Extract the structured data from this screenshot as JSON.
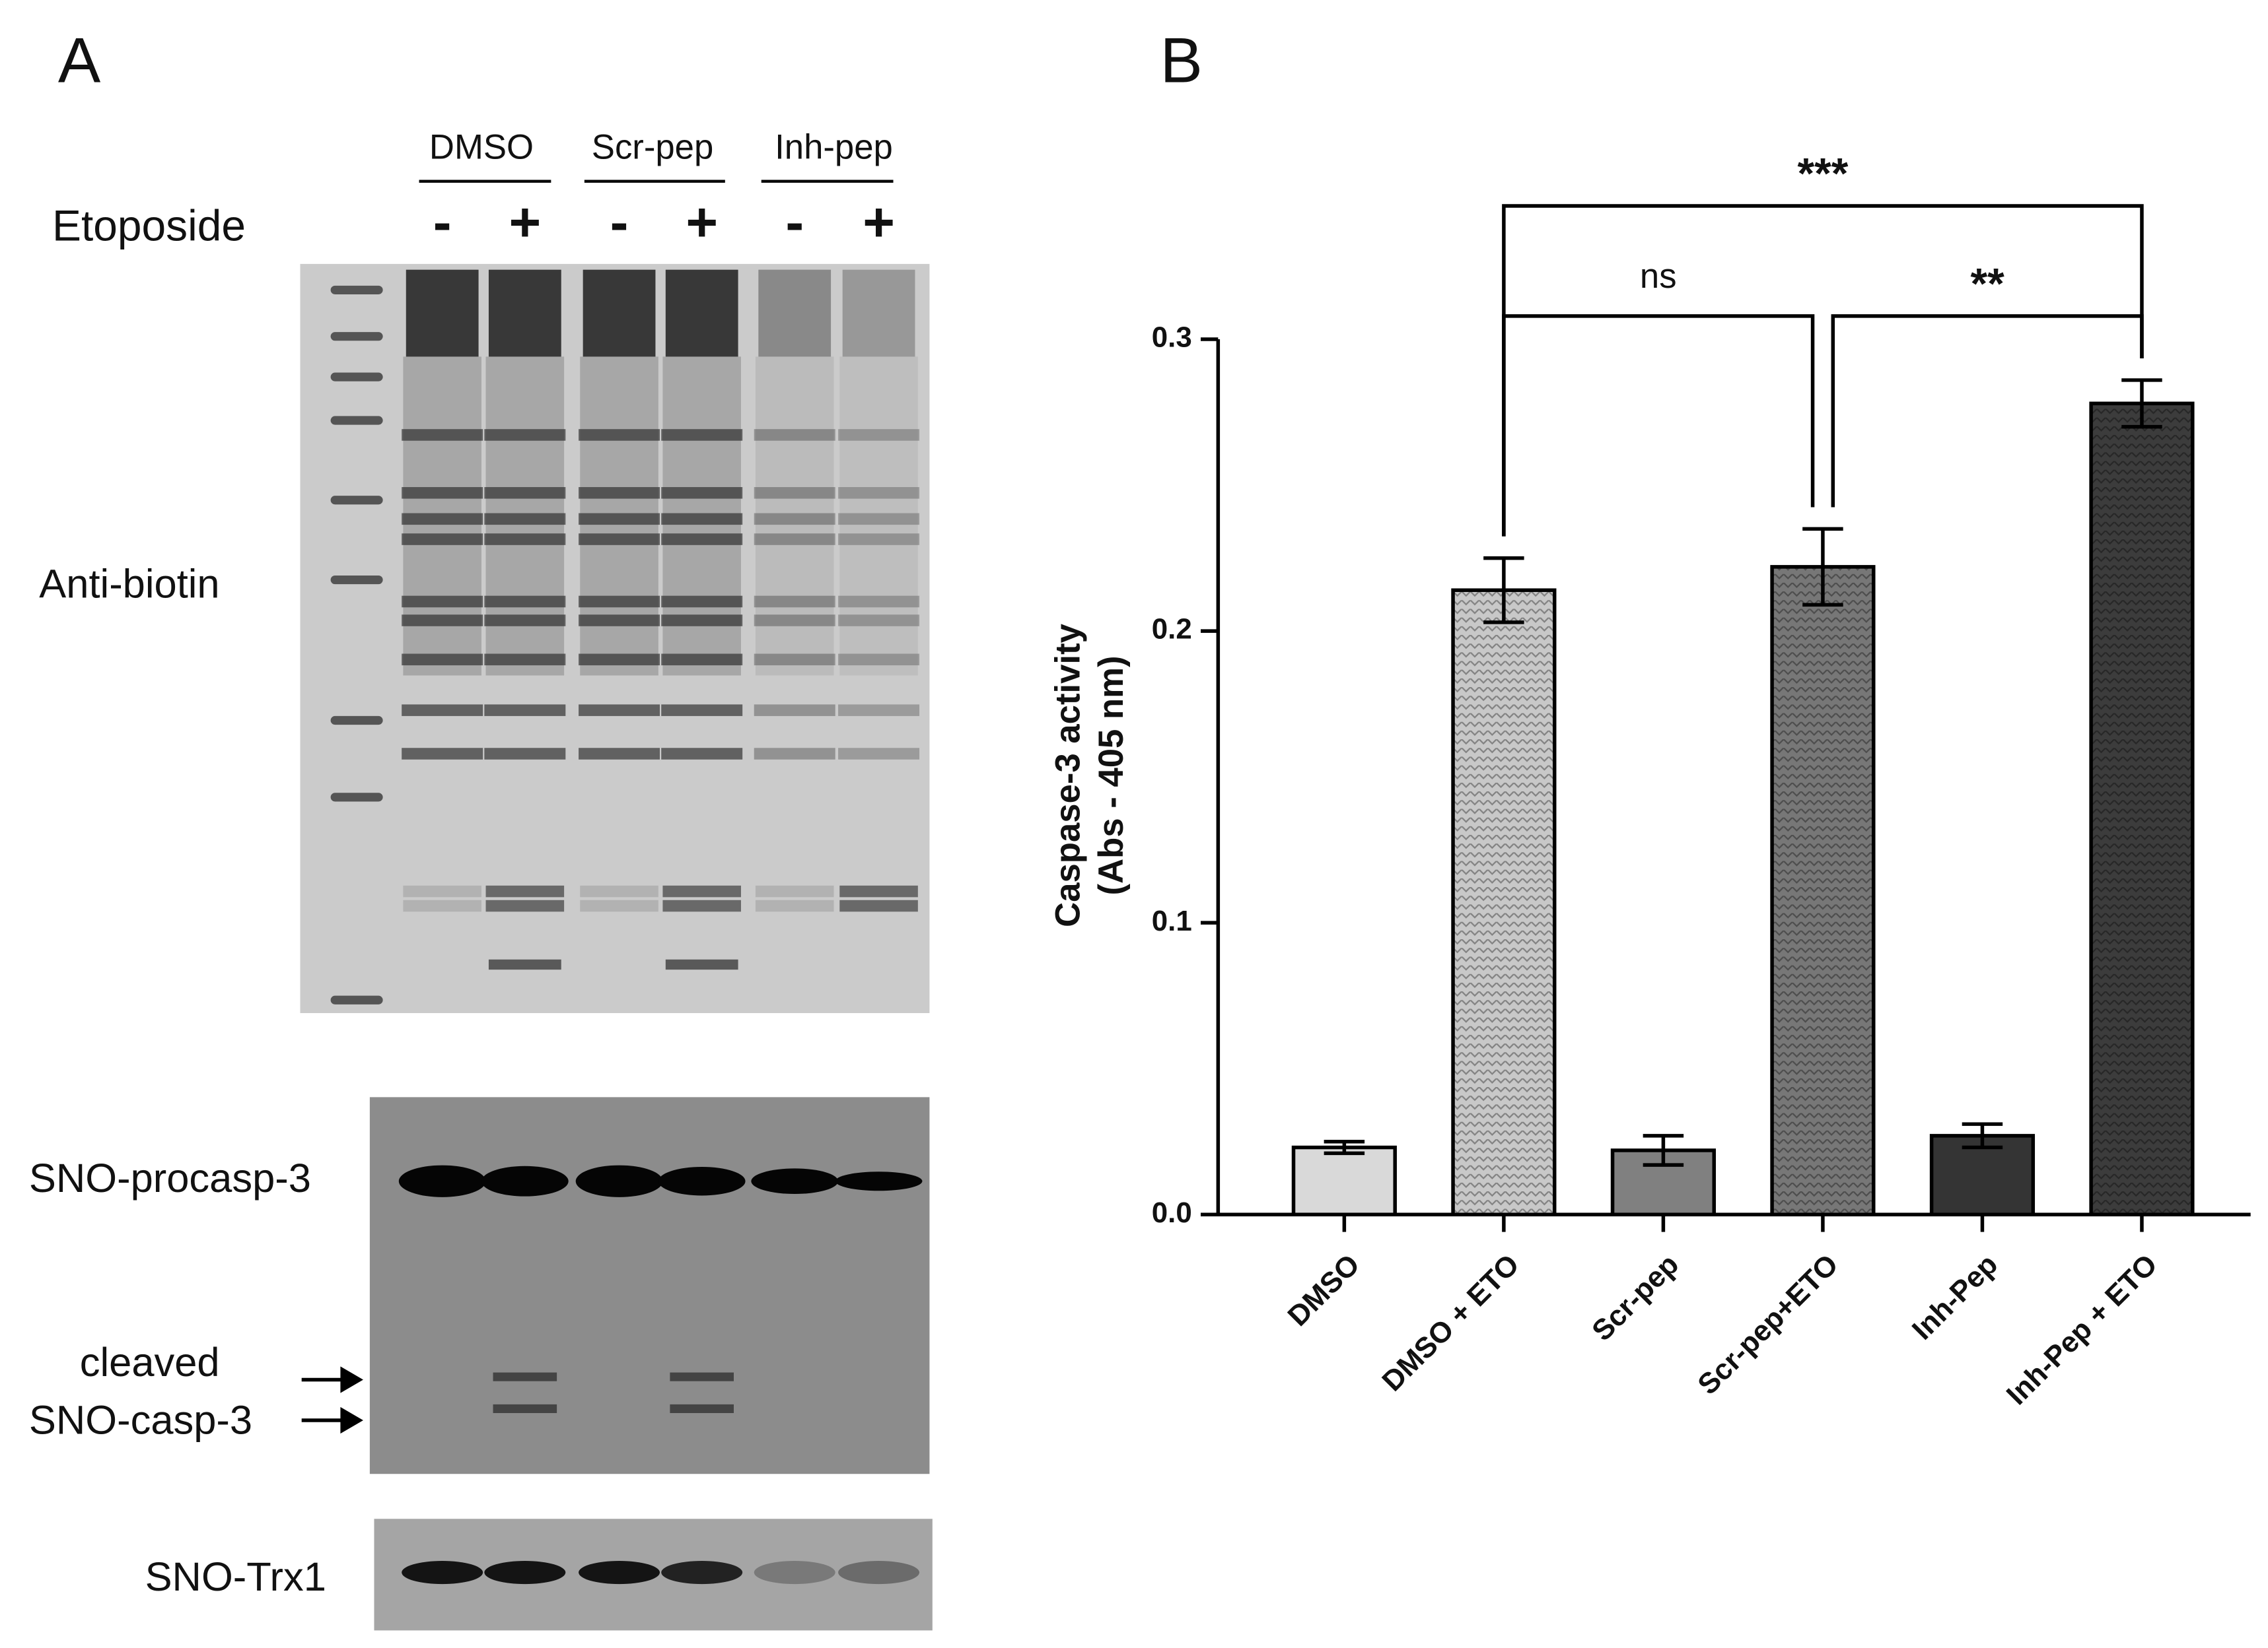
{
  "panel_a": {
    "label": "A",
    "groups": [
      "DMSO",
      "Scr-pep",
      "Inh-pep"
    ],
    "row_label": "Etoposide",
    "signs": [
      "-",
      "+",
      "-",
      "+",
      "-",
      "+"
    ],
    "blots": [
      "Anti-biotin",
      "SNO-procasp-3",
      "SNO-Trx1"
    ],
    "cleaved_label": [
      "cleaved",
      "SNO-casp-3"
    ]
  },
  "chart_data": {
    "type": "bar",
    "panel_label": "B",
    "y_label": [
      "Caspase-3 activity",
      "(Abs - 405 nm)"
    ],
    "categories": [
      "DMSO",
      "DMSO + ETO",
      "Scr-pep",
      "Scr-pep+ETO",
      "Inh-Pep",
      "Inh-Pep + ETO"
    ],
    "values": [
      0.023,
      0.214,
      0.022,
      0.222,
      0.027,
      0.278
    ],
    "errors": [
      0.002,
      0.011,
      0.005,
      0.013,
      0.004,
      0.008
    ],
    "colors": [
      "#d9d9d9",
      "#c8c8c8",
      "#808080",
      "#777777",
      "#343434",
      "#3c3c3c"
    ],
    "patterned": [
      false,
      true,
      false,
      true,
      false,
      true
    ],
    "ylim": [
      0,
      0.3
    ],
    "yticks": [
      {
        "value": 0,
        "label": "0.0"
      },
      0.1,
      0.2,
      0.3
    ],
    "annotations": [
      {
        "text": "***",
        "from": "DMSO + ETO",
        "to": "Inh-Pep + ETO"
      },
      {
        "text": "ns",
        "from": "DMSO + ETO",
        "to": "Scr-pep+ETO"
      },
      {
        "text": "**",
        "from": "Scr-pep+ETO",
        "to": "Inh-Pep + ETO"
      }
    ]
  }
}
